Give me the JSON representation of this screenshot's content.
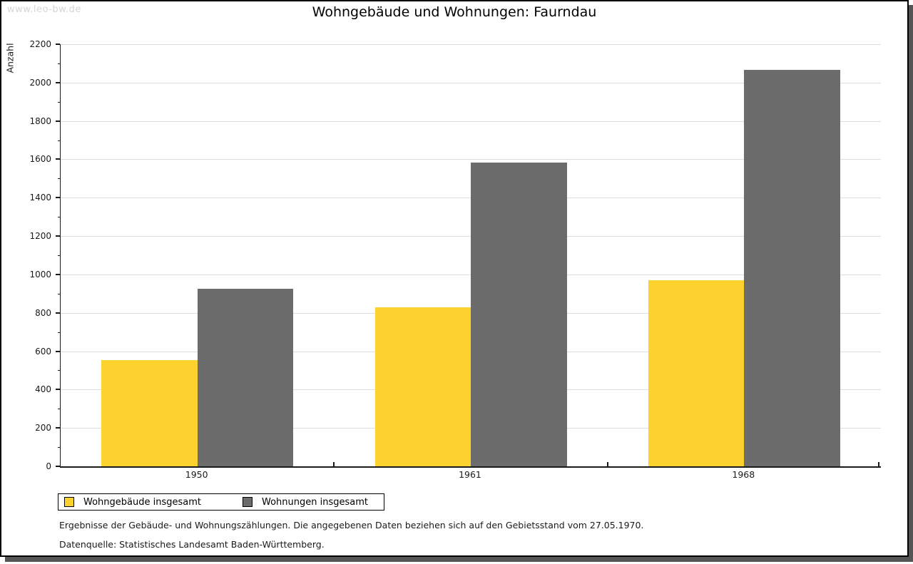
{
  "watermark": "www.leo-bw.de",
  "title": "Wohngebäude und Wohnungen: Faurndau",
  "chart_data": {
    "type": "bar",
    "title": "Wohngebäude und Wohnungen: Faurndau",
    "categories": [
      "1950",
      "1961",
      "1968"
    ],
    "series": [
      {
        "name": "Wohngebäude insgesamt",
        "color": "#fcd32e",
        "values": [
          555,
          830,
          970
        ]
      },
      {
        "name": "Wohnungen insgesamt",
        "color": "#6c6c6c",
        "values": [
          925,
          1585,
          2065
        ]
      }
    ],
    "xlabel": "",
    "ylabel": "Anzahl",
    "ylim": [
      0,
      2200
    ],
    "ytick_interval": 200,
    "yticks": [
      0,
      200,
      400,
      600,
      800,
      1000,
      1200,
      1400,
      1600,
      1800,
      2000,
      2200
    ],
    "grid": true,
    "legend_position": "bottom-left"
  },
  "legend": {
    "items": [
      {
        "label": "Wohngebäude insgesamt",
        "color": "#fcd32e"
      },
      {
        "label": "Wohnungen insgesamt",
        "color": "#6c6c6c"
      }
    ]
  },
  "footnotes": {
    "line1": "Ergebnisse der Gebäude- und Wohnungszählungen. Die angegebenen Daten beziehen sich auf den Gebietsstand vom 27.05.1970.",
    "line2": "Datenquelle: Statistisches Landesamt Baden-Württemberg."
  },
  "colors": {
    "series1": "#fcd32e",
    "series2": "#6c6c6c",
    "gridline": "#dedede",
    "axis": "#1a1a1a",
    "watermark": "#d6d6d6",
    "frame_shadow": "#555555"
  }
}
